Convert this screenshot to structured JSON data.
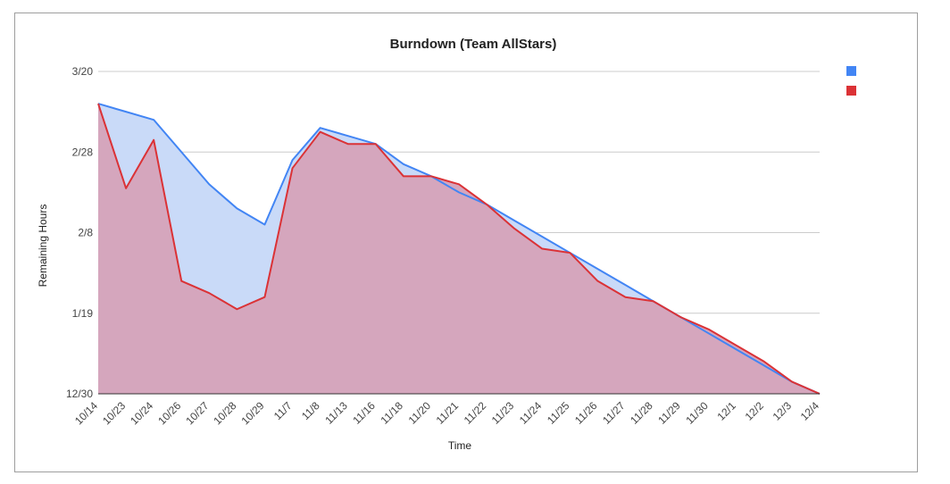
{
  "chart_data": {
    "type": "area",
    "title": "Burndown (Team AllStars)",
    "xlabel": "Time",
    "ylabel": "Remaining Hours",
    "categories": [
      "10/14",
      "10/23",
      "10/24",
      "10/26",
      "10/27",
      "10/28",
      "10/29",
      "11/7",
      "11/8",
      "11/13",
      "11/16",
      "11/18",
      "11/20",
      "11/21",
      "11/22",
      "11/23",
      "11/24",
      "11/25",
      "11/26",
      "11/27",
      "11/28",
      "11/29",
      "11/30",
      "12/1",
      "12/2",
      "12/3",
      "12/4"
    ],
    "y_ticks": [
      "12/30",
      "1/19",
      "2/8",
      "2/28",
      "3/20"
    ],
    "ylim": [
      0,
      80
    ],
    "grid": true,
    "legend_position": "right",
    "series": [
      {
        "color": "#4285f4",
        "fill": "#c9daf8",
        "values": [
          72,
          70,
          68,
          60,
          52,
          46,
          42,
          58,
          66,
          64,
          62,
          57,
          54,
          50,
          47,
          43,
          39,
          35,
          31,
          27,
          23,
          19,
          15,
          11,
          7,
          3,
          0
        ]
      },
      {
        "color": "#db3236",
        "fill": "#d5a6bd",
        "values": [
          72,
          51,
          63,
          28,
          25,
          21,
          24,
          56,
          65,
          62,
          62,
          54,
          54,
          52,
          47,
          41,
          36,
          35,
          28,
          24,
          23,
          19,
          16,
          12,
          8,
          3,
          0
        ]
      }
    ]
  }
}
